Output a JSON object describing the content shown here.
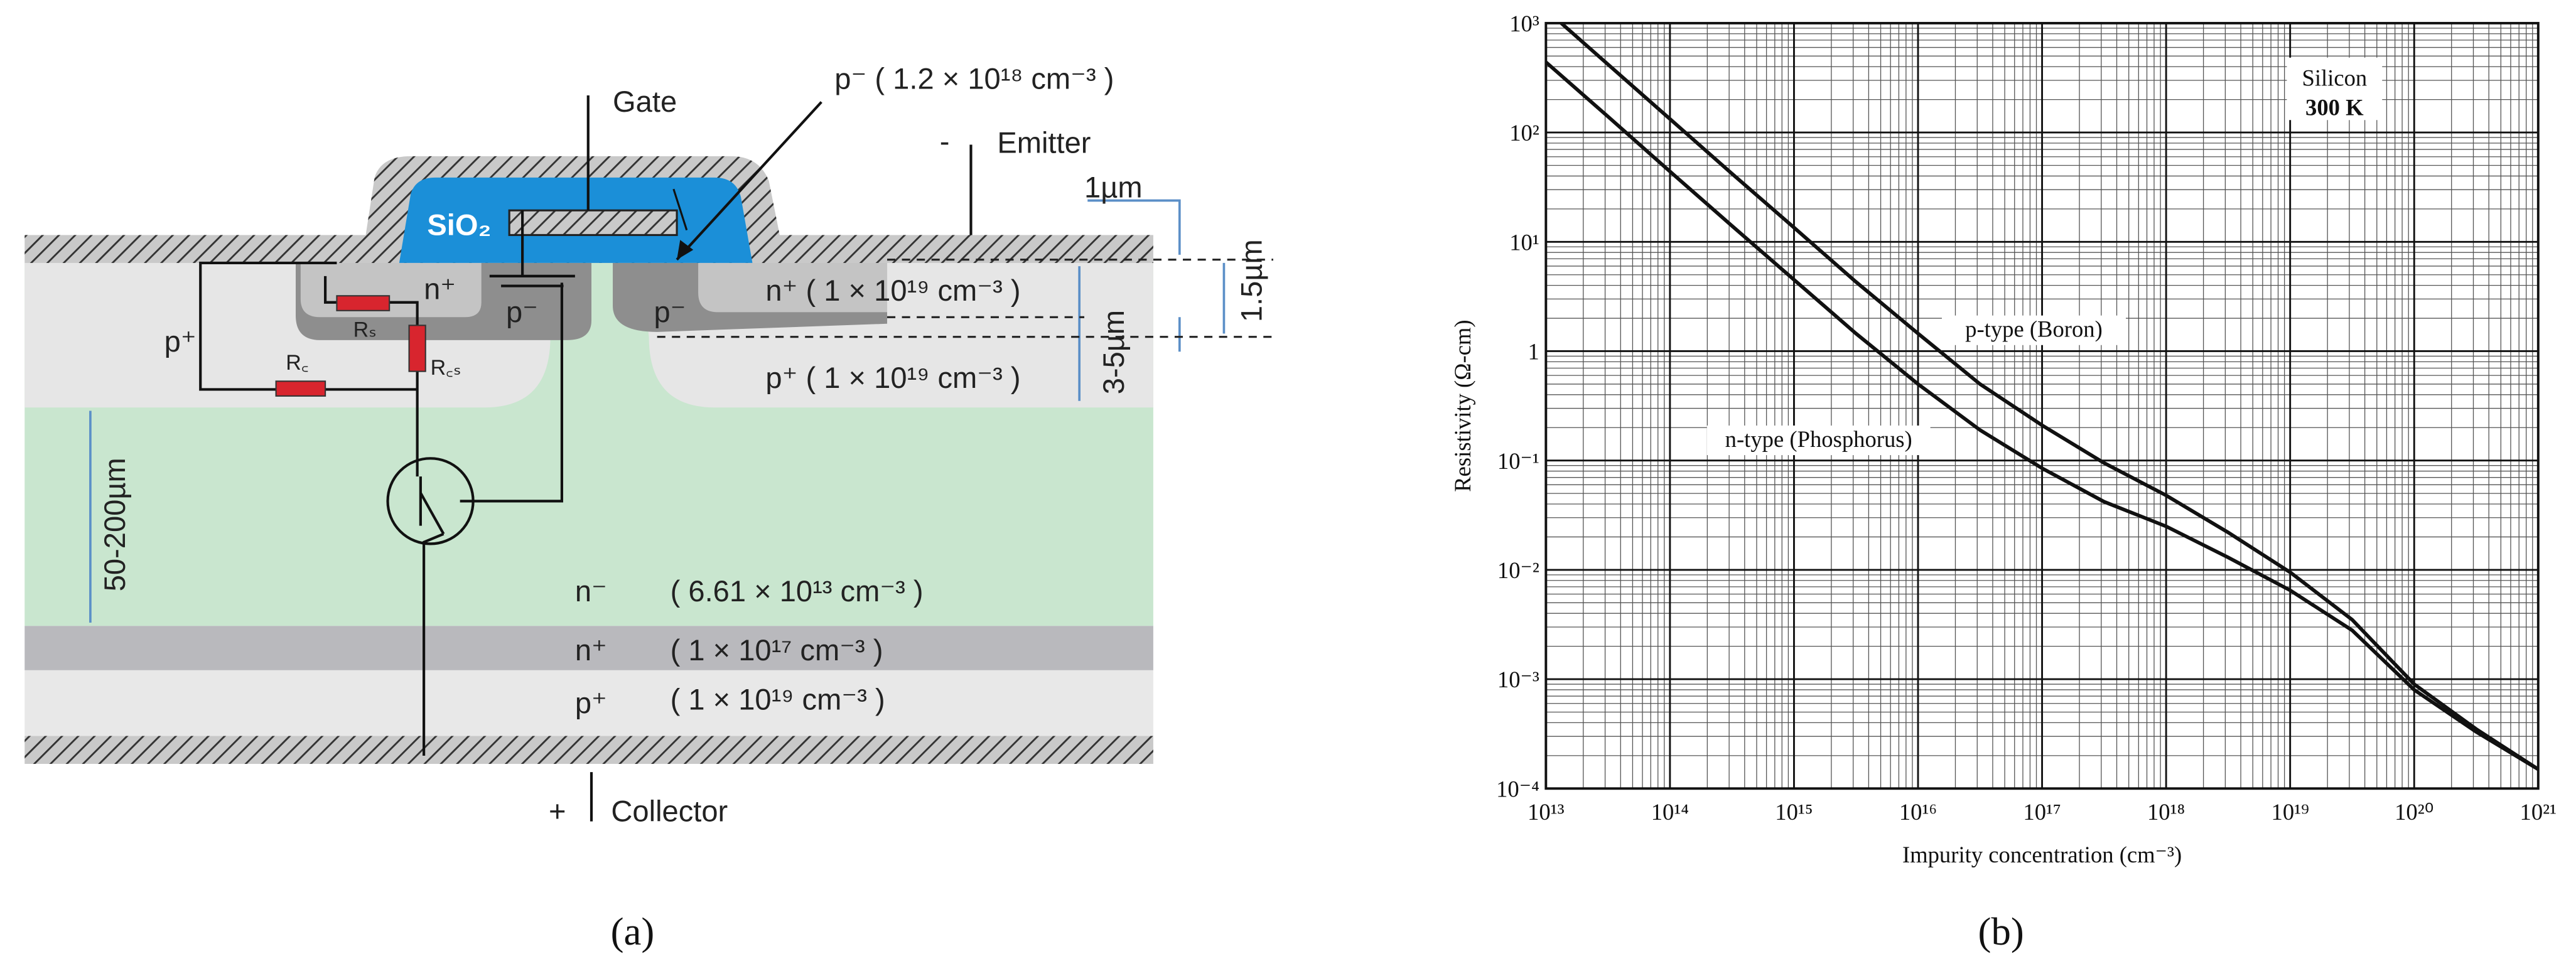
{
  "panel_a": {
    "gate": "Gate",
    "gate_doping": "p⁻ ( 1.2 × 10¹⁸ cm⁻³ )",
    "emitter_sign": "-",
    "emitter": "Emitter",
    "dim_1um": "1µm",
    "oxide": "SiO₂",
    "n_plus_left": "n⁺",
    "p_minus_left": "p⁻",
    "p_minus_right": "p⁻",
    "n_plus_right": "n⁺  ( 1 × 10¹⁹ cm⁻³ )",
    "dim_1_5um": "1.5µm",
    "p_plus_left": "p⁺",
    "r_s": "Rₛ",
    "r_c": "R꜀",
    "r_cs": "R꜀ₛ",
    "p_plus_right": "p⁺ ( 1 × 10¹⁹ cm⁻³ )",
    "dim_3_5um": "3-5µm",
    "dim_50_200um": "50-200µm",
    "drift_label": "n⁻",
    "drift_doping": "( 6.61 × 10¹³ cm⁻³ )",
    "buffer_label": "n⁺",
    "buffer_doping": "( 1 × 10¹⁷ cm⁻³ )",
    "collector_layer_label": "p⁺",
    "collector_layer_doping": "( 1 × 10¹⁹ cm⁻³ )",
    "collector_sign": "+",
    "collector": "Collector",
    "caption": "(a)"
  },
  "panel_b": {
    "caption": "(b)"
  },
  "chart_data": {
    "type": "line",
    "log_scale": {
      "x": true,
      "y": true
    },
    "grid": true,
    "x_label": "Impurity concentration (cm⁻³)",
    "y_label": "Resistivity (Ω-cm)",
    "annotations": [
      "Silicon",
      "300 K"
    ],
    "x": [
      10000000000000.0,
      31600000000000.0,
      100000000000000.0,
      316000000000000.0,
      1000000000000000.0,
      3160000000000000.0,
      1e+16,
      3.16e+16,
      1e+17,
      3.16e+17,
      1e+18,
      3.16e+18,
      1e+19,
      3.16e+19,
      1e+20,
      3.16e+20,
      1e+21
    ],
    "series": [
      {
        "name": "p-type (Boron)",
        "color": "#111111",
        "values": [
          1330,
          420,
          133,
          42,
          13.5,
          4.3,
          1.45,
          0.5,
          0.21,
          0.095,
          0.048,
          0.022,
          0.0095,
          0.0035,
          0.0009,
          0.00035,
          0.00015
        ]
      },
      {
        "name": "n-type (Phosphorus)",
        "color": "#111111",
        "values": [
          440,
          140,
          44,
          14,
          4.5,
          1.45,
          0.5,
          0.19,
          0.085,
          0.042,
          0.025,
          0.013,
          0.0065,
          0.0028,
          0.0008,
          0.00033,
          0.00015
        ]
      }
    ],
    "xlim": [
      10000000000000.0,
      1e+21
    ],
    "ylim": [
      0.0001,
      1000
    ],
    "xticks": [
      {
        "value": 10000000000000.0,
        "label": "10¹³"
      },
      {
        "value": 100000000000000.0,
        "label": "10¹⁴"
      },
      {
        "value": 1000000000000000.0,
        "label": "10¹⁵"
      },
      {
        "value": 1e+16,
        "label": "10¹⁶"
      },
      {
        "value": 1e+17,
        "label": "10¹⁷"
      },
      {
        "value": 1e+18,
        "label": "10¹⁸"
      },
      {
        "value": 1e+19,
        "label": "10¹⁹"
      },
      {
        "value": 1e+20,
        "label": "10²⁰"
      },
      {
        "value": 1e+21,
        "label": "10²¹"
      }
    ],
    "yticks": [
      {
        "value": 0.0001,
        "label": "10⁻⁴"
      },
      {
        "value": 0.001,
        "label": "10⁻³"
      },
      {
        "value": 0.01,
        "label": "10⁻²"
      },
      {
        "value": 0.1,
        "label": "10⁻¹"
      },
      1,
      {
        "value": 10,
        "label": "10¹"
      },
      {
        "value": 100,
        "label": "10²"
      },
      {
        "value": 1000,
        "label": "10³"
      }
    ]
  }
}
